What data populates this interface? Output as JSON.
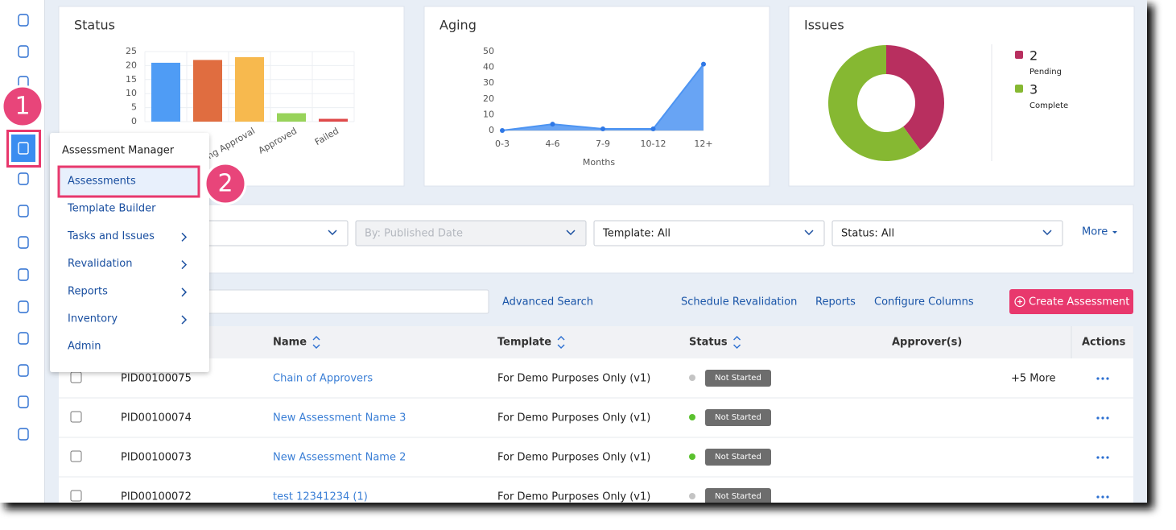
{
  "chart_data": [
    {
      "type": "bar",
      "title": "Status",
      "categories": [
        null,
        null,
        "Pending Approval",
        "Approved",
        "Failed"
      ],
      "values": [
        21,
        22,
        23,
        3,
        1
      ],
      "colors": [
        "#4f9cf5",
        "#e06d40",
        "#f7b94e",
        "#98d35a",
        "#e04a4a"
      ],
      "ylim": [
        0,
        25
      ],
      "yticks": [
        0,
        5,
        10,
        15,
        20,
        25
      ],
      "grid": true
    },
    {
      "type": "area",
      "title": "Aging",
      "categories": [
        "0-3",
        "4-6",
        "7-9",
        "10-12",
        "12+"
      ],
      "values": [
        0,
        4,
        1,
        1,
        42
      ],
      "color": "#4d94f2",
      "x_label": "Months",
      "ylim": [
        0,
        50
      ],
      "yticks": [
        0,
        10,
        20,
        30,
        40,
        50
      ]
    },
    {
      "type": "donut",
      "title": "Issues",
      "categories": [
        "Pending",
        "Complete"
      ],
      "values": [
        2,
        3
      ],
      "colors": [
        "#b82f5f",
        "#86b832"
      ]
    }
  ],
  "callouts": [
    "1",
    "2"
  ],
  "menu": {
    "title": "Assessment Manager",
    "items": [
      {
        "label": "Assessments",
        "submenu": false,
        "active": true
      },
      {
        "label": "Template Builder",
        "submenu": false,
        "active": false
      },
      {
        "label": "Tasks and Issues",
        "submenu": true,
        "active": false
      },
      {
        "label": "Revalidation",
        "submenu": true,
        "active": false
      },
      {
        "label": "Reports",
        "submenu": true,
        "active": false
      },
      {
        "label": "Inventory",
        "submenu": true,
        "active": false
      },
      {
        "label": "Admin",
        "submenu": false,
        "active": false
      }
    ]
  },
  "filters": {
    "date": "By: Published Date",
    "template": "Template: All",
    "status": "Status: All",
    "more": "More"
  },
  "toolbar": {
    "advanced_search": "Advanced Search",
    "links": [
      "Schedule Revalidation",
      "Reports",
      "Configure Columns"
    ],
    "create": "Create Assessment"
  },
  "table": {
    "columns": [
      "Name",
      "Template",
      "Status",
      "Approver(s)",
      "Actions"
    ],
    "rows": [
      {
        "id": "PID00100075",
        "name": "Chain of Approvers",
        "template": "For Demo Purposes Only (v1)",
        "status": "Not Started",
        "dot": "#c4c4c4",
        "approvers": "+5 More"
      },
      {
        "id": "PID00100074",
        "name": "New Assessment Name 3",
        "template": "For Demo Purposes Only (v1)",
        "status": "Not Started",
        "dot": "#5ac12e"
      },
      {
        "id": "PID00100073",
        "name": "New Assessment Name 2",
        "template": "For Demo Purposes Only (v1)",
        "status": "Not Started",
        "dot": "#5ac12e"
      },
      {
        "id": "PID00100072",
        "name": "test 12341234 (1)",
        "template": "For Demo Purposes Only (v1)",
        "status": "Not Started",
        "dot": "#c4c4c4"
      }
    ]
  }
}
